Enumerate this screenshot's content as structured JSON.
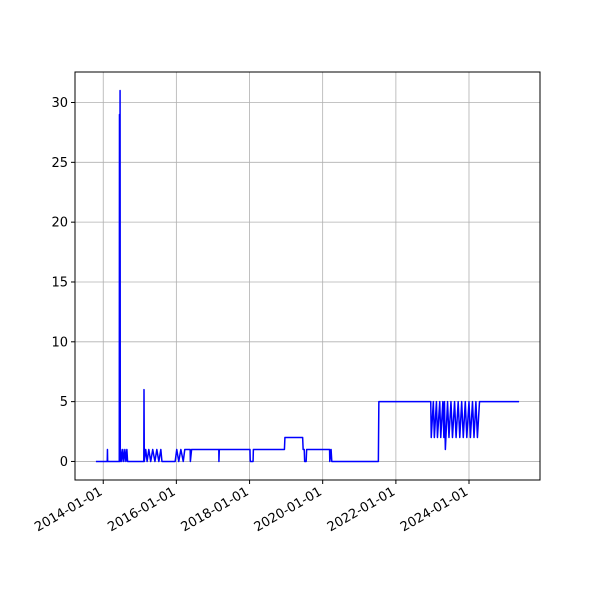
{
  "chart_data": {
    "type": "line",
    "x": [
      "2013-10-20",
      "2014-02-10",
      "2014-02-12",
      "2014-02-14",
      "2014-06-10",
      "2014-06-12",
      "2014-06-14",
      "2014-06-18",
      "2014-06-20",
      "2014-06-25",
      "2014-07-05",
      "2014-07-15",
      "2014-07-25",
      "2014-08-05",
      "2014-08-15",
      "2014-08-25",
      "2014-09-01",
      "2015-02-10",
      "2015-02-12",
      "2015-02-15",
      "2015-03-01",
      "2015-03-15",
      "2015-04-01",
      "2015-04-20",
      "2015-05-10",
      "2015-06-01",
      "2015-06-20",
      "2015-07-10",
      "2015-07-30",
      "2015-08-10",
      "2015-12-20",
      "2016-01-05",
      "2016-01-25",
      "2016-02-15",
      "2016-03-10",
      "2016-03-25",
      "2016-05-18",
      "2016-05-20",
      "2016-06-01",
      "2017-02-28",
      "2017-03-01",
      "2017-03-05",
      "2018-01-05",
      "2018-01-08",
      "2018-02-05",
      "2018-02-08",
      "2018-12-15",
      "2018-12-20",
      "2019-06-15",
      "2019-06-20",
      "2019-07-01",
      "2019-07-05",
      "2019-07-20",
      "2019-07-25",
      "2020-03-10",
      "2020-03-12",
      "2020-03-25",
      "2020-04-01",
      "2021-07-10",
      "2021-07-15",
      "2022-12-15",
      "2022-12-20",
      "2023-01-10",
      "2023-01-20",
      "2023-02-10",
      "2023-02-20",
      "2023-03-15",
      "2023-03-25",
      "2023-04-15",
      "2023-04-25",
      "2023-05-01",
      "2023-05-10",
      "2023-06-01",
      "2023-06-15",
      "2023-07-05",
      "2023-07-20",
      "2023-08-10",
      "2023-08-25",
      "2023-09-15",
      "2023-10-01",
      "2023-10-20",
      "2023-11-05",
      "2023-11-25",
      "2023-12-10",
      "2024-01-01",
      "2024-01-15",
      "2024-02-05",
      "2024-02-20",
      "2024-03-10",
      "2024-03-25",
      "2024-04-15",
      "2024-05-10",
      "2025-05-15"
    ],
    "values": [
      0,
      0,
      1,
      0,
      0,
      29,
      0,
      31,
      0,
      1,
      0,
      1,
      0,
      1,
      0,
      1,
      0,
      0,
      6,
      0,
      1,
      0,
      1,
      0,
      1,
      0,
      1,
      0,
      1,
      0,
      0,
      1,
      0,
      1,
      0,
      1,
      1,
      0,
      1,
      1,
      0,
      1,
      1,
      0,
      0,
      1,
      1,
      2,
      2,
      1,
      1,
      0,
      0,
      1,
      1,
      0,
      1,
      0,
      0,
      5,
      5,
      2,
      5,
      2,
      5,
      2,
      5,
      2,
      5,
      2,
      5,
      1,
      5,
      2,
      5,
      2,
      5,
      2,
      5,
      2,
      5,
      2,
      5,
      2,
      5,
      2,
      5,
      2,
      5,
      2,
      5,
      5,
      5
    ],
    "color": "#0000ff",
    "xlim": [
      "2013-03-25",
      "2025-12-10"
    ],
    "xticks": [
      "2014-01-01",
      "2016-01-01",
      "2018-01-01",
      "2020-01-01",
      "2022-01-01",
      "2024-01-01"
    ],
    "ylim": [
      -1.55,
      32.55
    ],
    "yticks": [
      0,
      5,
      10,
      15,
      20,
      25,
      30
    ],
    "grid": true
  }
}
